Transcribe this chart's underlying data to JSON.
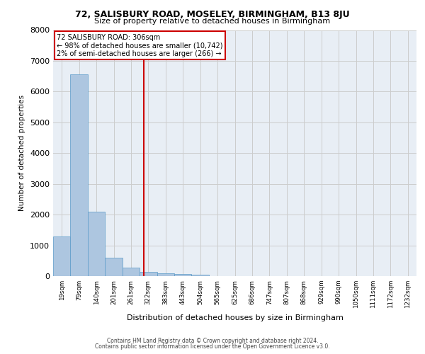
{
  "title1": "72, SALISBURY ROAD, MOSELEY, BIRMINGHAM, B13 8JU",
  "title2": "Size of property relative to detached houses in Birmingham",
  "xlabel": "Distribution of detached houses by size in Birmingham",
  "ylabel": "Number of detached properties",
  "bin_labels": [
    "19sqm",
    "79sqm",
    "140sqm",
    "201sqm",
    "261sqm",
    "322sqm",
    "383sqm",
    "443sqm",
    "504sqm",
    "565sqm",
    "625sqm",
    "686sqm",
    "747sqm",
    "807sqm",
    "868sqm",
    "929sqm",
    "990sqm",
    "1050sqm",
    "1111sqm",
    "1172sqm",
    "1232sqm"
  ],
  "bar_heights": [
    1300,
    6550,
    2100,
    600,
    270,
    130,
    90,
    60,
    50,
    10,
    0,
    0,
    0,
    0,
    0,
    0,
    0,
    0,
    0,
    0,
    0
  ],
  "bar_color": "#adc6e0",
  "bar_edge_color": "#5a9ac8",
  "property_bin_index": 4.75,
  "annotation_text1": "72 SALISBURY ROAD: 306sqm",
  "annotation_text2": "← 98% of detached houses are smaller (10,742)",
  "annotation_text3": "2% of semi-detached houses are larger (266) →",
  "annotation_box_color": "#ffffff",
  "annotation_border_color": "#cc0000",
  "vline_color": "#cc0000",
  "grid_color": "#cccccc",
  "bg_color": "#e8eef5",
  "ylim": [
    0,
    8000
  ],
  "yticks": [
    0,
    1000,
    2000,
    3000,
    4000,
    5000,
    6000,
    7000,
    8000
  ],
  "footer1": "Contains HM Land Registry data © Crown copyright and database right 2024.",
  "footer2": "Contains public sector information licensed under the Open Government Licence v3.0."
}
